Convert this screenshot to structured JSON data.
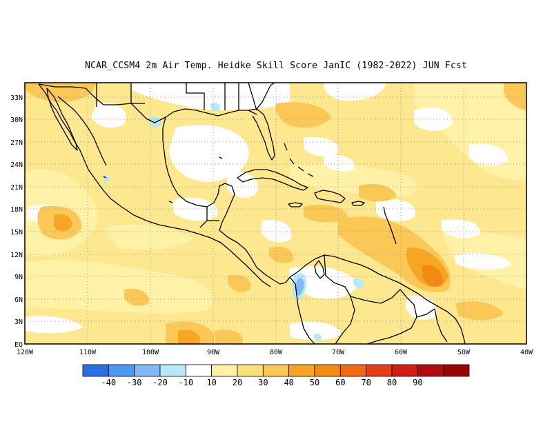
{
  "title": "NCAR_CCSM4  2m Air Temp. Heidke Skill Score JanIC (1982-2022) JUN Fcst",
  "axes": {
    "lat_labels": [
      "EQ",
      "3N",
      "6N",
      "9N",
      "12N",
      "15N",
      "18N",
      "21N",
      "24N",
      "27N",
      "30N",
      "33N"
    ],
    "lon_labels": [
      "120W",
      "110W",
      "100W",
      "90W",
      "80W",
      "70W",
      "60W",
      "50W",
      "40W"
    ]
  },
  "colorbar": {
    "colors": [
      "#2b6fe0",
      "#4f97ee",
      "#84baf4",
      "#b6e8f7",
      "#ffffff",
      "#fff2a6",
      "#fde07a",
      "#fbc757",
      "#f7a623",
      "#f38a12",
      "#ef6a12",
      "#e3401a",
      "#cf1c14",
      "#b30b0b",
      "#970404"
    ],
    "labels": [
      "-40",
      "-30",
      "-20",
      "-10",
      "10",
      "20",
      "30",
      "40",
      "50",
      "60",
      "70",
      "80",
      "90"
    ]
  },
  "colors": {
    "frame": "#000000",
    "grid": "#999999",
    "coast": "#000000"
  }
}
